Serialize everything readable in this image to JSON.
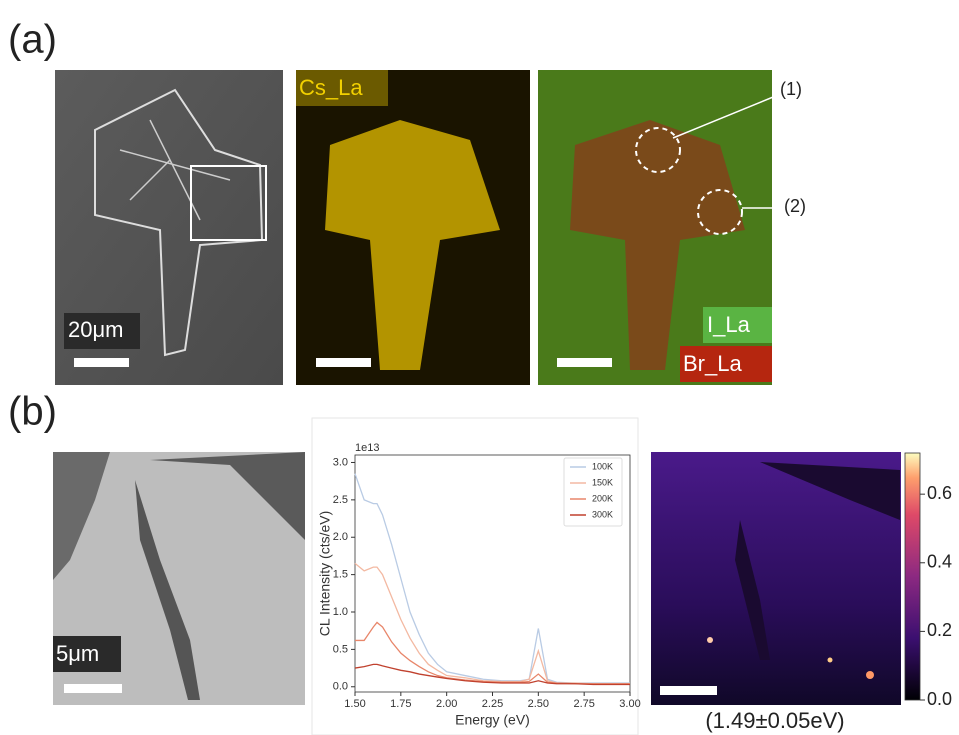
{
  "panel_labels": [
    "(a)",
    "(b)"
  ],
  "image_labels": {
    "scale_a": "20μm",
    "cs": "Cs_La",
    "i": "I_La",
    "br": "Br_La",
    "region_1": "(1)",
    "region_2": "(2)",
    "scale_b": "5μm",
    "map_caption": "(1.49±0.05eV)"
  },
  "chart_data": [
    {
      "type": "line",
      "x_label": "Energy (eV)",
      "y_label": "CL Intensity (cts/eV)",
      "y_offset_label": "1e13",
      "x": [
        1.5,
        1.55,
        1.6,
        1.62,
        1.65,
        1.7,
        1.75,
        1.8,
        1.85,
        1.9,
        1.95,
        2.0,
        2.1,
        2.2,
        2.3,
        2.4,
        2.45,
        2.5,
        2.55,
        2.6,
        2.7,
        2.8,
        2.9,
        3.0
      ],
      "series": [
        {
          "name": "100K",
          "color": "#b9cbe4",
          "values": [
            2.85,
            2.5,
            2.45,
            2.45,
            2.3,
            1.9,
            1.45,
            1.0,
            0.7,
            0.45,
            0.3,
            0.2,
            0.15,
            0.1,
            0.08,
            0.08,
            0.1,
            0.78,
            0.1,
            0.06,
            0.05,
            0.05,
            0.05,
            0.05
          ]
        },
        {
          "name": "150K",
          "color": "#f3b9a2",
          "values": [
            1.65,
            1.55,
            1.6,
            1.6,
            1.5,
            1.2,
            0.9,
            0.65,
            0.45,
            0.3,
            0.22,
            0.15,
            0.12,
            0.08,
            0.07,
            0.07,
            0.1,
            0.48,
            0.08,
            0.05,
            0.05,
            0.04,
            0.04,
            0.04
          ]
        },
        {
          "name": "200K",
          "color": "#e8866a",
          "values": [
            0.62,
            0.62,
            0.8,
            0.86,
            0.8,
            0.6,
            0.45,
            0.35,
            0.27,
            0.2,
            0.15,
            0.12,
            0.09,
            0.07,
            0.06,
            0.06,
            0.07,
            0.17,
            0.06,
            0.05,
            0.04,
            0.04,
            0.04,
            0.04
          ]
        },
        {
          "name": "300K",
          "color": "#c0412e",
          "values": [
            0.25,
            0.27,
            0.3,
            0.3,
            0.28,
            0.25,
            0.22,
            0.2,
            0.17,
            0.15,
            0.13,
            0.11,
            0.08,
            0.06,
            0.05,
            0.05,
            0.05,
            0.08,
            0.05,
            0.04,
            0.04,
            0.03,
            0.03,
            0.03
          ]
        }
      ],
      "xlim": [
        1.5,
        3.0
      ],
      "xticks": [
        {
          "value": 1.5,
          "label": "1.50"
        },
        {
          "value": 1.75,
          "label": "1.75"
        },
        {
          "value": 2.0,
          "label": "2.00"
        },
        {
          "value": 2.25,
          "label": "2.25"
        },
        {
          "value": 2.5,
          "label": "2.50"
        },
        {
          "value": 2.75,
          "label": "2.75"
        },
        {
          "value": 3.0,
          "label": "3.00"
        }
      ],
      "ylim": [
        -0.07,
        3.1
      ],
      "yticks": [
        {
          "value": 0,
          "label": "0.0"
        },
        {
          "value": 0.5,
          "label": "0.5"
        },
        {
          "value": 1,
          "label": "1.0"
        },
        {
          "value": 1.5,
          "label": "1.5"
        },
        {
          "value": 2,
          "label": "2.0"
        },
        {
          "value": 2.5,
          "label": "2.5"
        },
        {
          "value": 3,
          "label": "3.0"
        }
      ],
      "legend": "upper right"
    },
    {
      "type": "colorbar",
      "ylim": [
        0,
        0.72
      ],
      "yticks": [
        {
          "value": 0,
          "label": "0.0"
        },
        {
          "value": 0.2,
          "label": "0.2"
        },
        {
          "value": 0.4,
          "label": "0.4"
        },
        {
          "value": 0.6,
          "label": "0.6"
        }
      ]
    }
  ]
}
